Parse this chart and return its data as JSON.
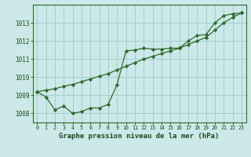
{
  "x": [
    0,
    1,
    2,
    3,
    4,
    5,
    6,
    7,
    8,
    9,
    10,
    11,
    12,
    13,
    14,
    15,
    16,
    17,
    18,
    19,
    20,
    21,
    22,
    23
  ],
  "y_actual": [
    1009.2,
    1008.9,
    1008.2,
    1008.4,
    1008.0,
    1008.1,
    1008.3,
    1008.3,
    1008.5,
    1009.6,
    1011.45,
    1011.5,
    1011.6,
    1011.55,
    1011.55,
    1011.6,
    1011.6,
    1012.0,
    1012.3,
    1012.35,
    1013.0,
    1013.4,
    1013.5,
    1013.55
  ],
  "y_trend": [
    1009.2,
    1009.28,
    1009.36,
    1009.5,
    1009.6,
    1009.75,
    1009.9,
    1010.05,
    1010.2,
    1010.4,
    1010.6,
    1010.8,
    1011.0,
    1011.15,
    1011.3,
    1011.45,
    1011.6,
    1011.8,
    1012.0,
    1012.2,
    1012.6,
    1013.0,
    1013.3,
    1013.55
  ],
  "line_color": "#2d6a2d",
  "marker_color": "#2d6a2d",
  "bg_color": "#cce8e8",
  "grid_color": "#99cccc",
  "xlabel": "Graphe pression niveau de la mer (hPa)",
  "xlabel_color": "#1a4a1a",
  "tick_color": "#1a4a1a",
  "ylim_min": 1007.5,
  "ylim_max": 1014.0,
  "yticks": [
    1008,
    1009,
    1010,
    1011,
    1012,
    1013
  ],
  "xticks": [
    0,
    1,
    2,
    3,
    4,
    5,
    6,
    7,
    8,
    9,
    10,
    11,
    12,
    13,
    14,
    15,
    16,
    17,
    18,
    19,
    20,
    21,
    22,
    23
  ]
}
